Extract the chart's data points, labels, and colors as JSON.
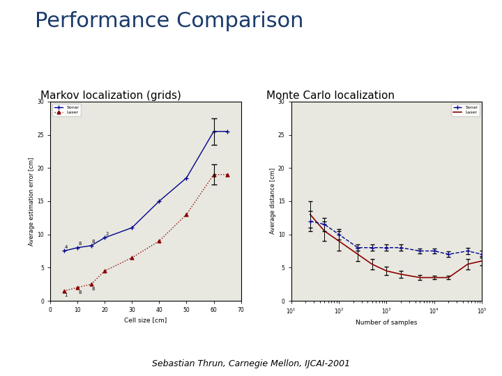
{
  "title": "Performance Comparison",
  "title_color": "#1a3a6b",
  "title_fontsize": 22,
  "subtitle": "Sebastian Thrun, Carnegie Mellon, IJCAI-2001",
  "subtitle_fontsize": 9,
  "left_label": "Markov localization (grids)",
  "right_label": "Monte Carlo localization",
  "label_fontsize": 11,
  "markov_sonar_x": [
    5,
    10,
    15,
    20,
    30,
    40,
    50,
    60,
    65
  ],
  "markov_sonar_y": [
    7.5,
    8.0,
    8.3,
    9.5,
    11.0,
    15.0,
    18.5,
    25.5,
    25.5
  ],
  "markov_sonar_yerr_last": 2.0,
  "markov_laser_x": [
    5,
    10,
    15,
    20,
    30,
    40,
    50,
    60,
    65
  ],
  "markov_laser_y": [
    1.5,
    2.0,
    2.5,
    4.5,
    6.5,
    9.0,
    13.0,
    19.0,
    19.0
  ],
  "markov_laser_yerr_last": 1.5,
  "markov_xlabel": "Cell size [cm]",
  "markov_ylabel": "Average estimation error [cm]",
  "markov_xlim": [
    0,
    70
  ],
  "markov_ylim": [
    0,
    30
  ],
  "markov_xticks": [
    0,
    10,
    20,
    30,
    40,
    50,
    60,
    70
  ],
  "markov_yticks": [
    0,
    5,
    10,
    15,
    20,
    25,
    30
  ],
  "mcl_sonar_x": [
    25,
    50,
    100,
    250,
    500,
    1000,
    2000,
    5000,
    10000,
    20000,
    50000,
    100000
  ],
  "mcl_sonar_y": [
    12.0,
    11.5,
    10.0,
    8.0,
    8.0,
    8.0,
    8.0,
    7.5,
    7.5,
    7.0,
    7.5,
    7.0
  ],
  "mcl_sonar_yerr": [
    1.5,
    1.0,
    0.8,
    0.5,
    0.5,
    0.5,
    0.5,
    0.4,
    0.4,
    0.4,
    0.5,
    0.5
  ],
  "mcl_laser_x": [
    25,
    50,
    100,
    250,
    500,
    1000,
    2000,
    5000,
    10000,
    20000,
    50000,
    100000
  ],
  "mcl_laser_y": [
    13.0,
    10.5,
    9.0,
    7.0,
    5.5,
    4.5,
    4.0,
    3.5,
    3.5,
    3.5,
    5.5,
    6.0
  ],
  "mcl_laser_yerr": [
    2.0,
    1.5,
    1.5,
    1.0,
    0.8,
    0.6,
    0.5,
    0.4,
    0.3,
    0.3,
    0.8,
    0.7
  ],
  "mcl_xlabel": "Number of samples",
  "mcl_ylabel": "Average distance [cm]",
  "mcl_xlim_log": [
    10,
    100000
  ],
  "mcl_ylim": [
    0,
    30
  ],
  "mcl_yticks": [
    0,
    5,
    10,
    15,
    20,
    25,
    30
  ],
  "sonar_color": "#00008B",
  "laser_color": "#8B0000",
  "sonar_label": "Sonar",
  "laser_label": "Laser",
  "plot_bg": "#e8e8e0"
}
